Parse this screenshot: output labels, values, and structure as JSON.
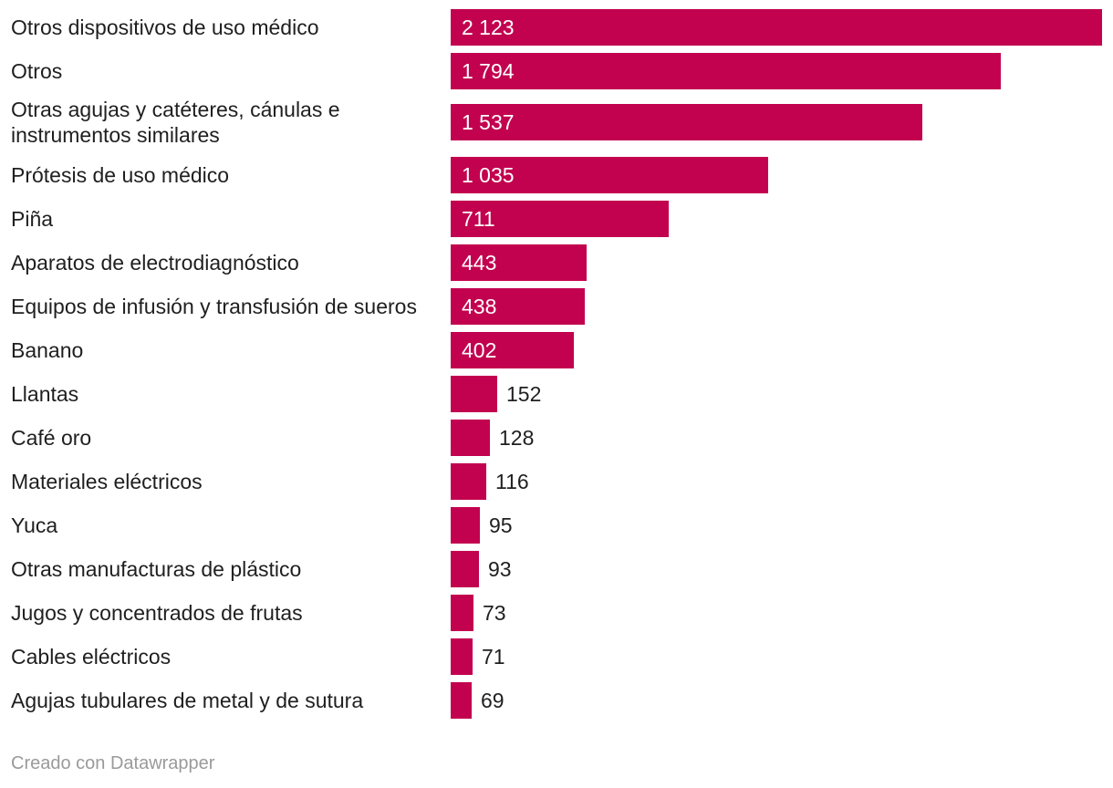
{
  "chart_data": {
    "type": "bar",
    "orientation": "horizontal",
    "categories": [
      "Otros dispositivos de uso médico",
      "Otros",
      "Otras agujas y catéteres, cánulas e instrumentos similares",
      "Prótesis de uso médico",
      "Piña",
      "Aparatos de electrodiagnóstico",
      "Equipos de infusión y transfusión de sueros",
      "Banano",
      "Llantas",
      "Café oro",
      "Materiales eléctricos",
      "Yuca",
      "Otras manufacturas de plástico",
      "Jugos y concentrados de frutas",
      "Cables eléctricos",
      "Agujas tubulares de metal y de sutura"
    ],
    "values": [
      2123,
      1794,
      1537,
      1035,
      711,
      443,
      438,
      402,
      152,
      128,
      116,
      95,
      93,
      73,
      71,
      69
    ],
    "value_labels": [
      "2 123",
      "1 794",
      "1 537",
      "1 035",
      "711",
      "443",
      "438",
      "402",
      "152",
      "128",
      "116",
      "95",
      "93",
      "73",
      "71",
      "69"
    ],
    "bar_color": "#c2024f",
    "xlim": [
      0,
      2123
    ],
    "grid": false
  },
  "footer": {
    "credit": "Creado con Datawrapper"
  }
}
